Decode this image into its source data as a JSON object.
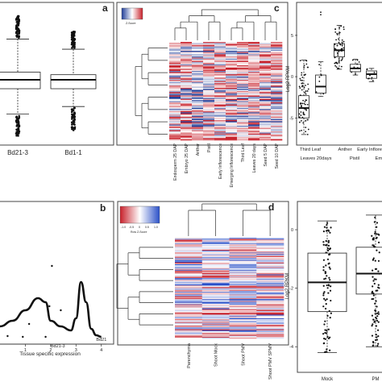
{
  "panels": {
    "a": {
      "label": "a",
      "chart_data": {
        "type": "boxplot",
        "categories": [
          "Bd21-3",
          "Bd1-1"
        ],
        "boxes": [
          {
            "name": "Bd21-3",
            "q1": 4.3,
            "median": 5.0,
            "q3": 5.6,
            "whisker_low": 2.3,
            "whisker_high": 8.2
          },
          {
            "name": "Bd1-1",
            "q1": 4.3,
            "median": 5.0,
            "q3": 5.4,
            "whisker_low": 2.9,
            "whisker_high": 7.4
          }
        ],
        "ylim": [
          0,
          10
        ]
      }
    },
    "b": {
      "label": "b",
      "xlabel": "Tissue specific expression",
      "chart_data": {
        "type": "line",
        "x": [
          0,
          0.5,
          1.0,
          1.5,
          1.8,
          2.0,
          2.4,
          2.8,
          3.0,
          3.2,
          3.4,
          3.6,
          3.8,
          4.0
        ],
        "y": [
          0.15,
          0.22,
          0.35,
          0.5,
          0.45,
          0.22,
          0.15,
          0.1,
          0.25,
          0.7,
          0.45,
          0.12,
          0.04,
          0.02
        ],
        "xticks": [
          "1",
          "2",
          "3",
          "4"
        ],
        "xlim": [
          0,
          4.2
        ],
        "ylim": [
          0,
          1.6
        ],
        "points": [
          {
            "x": 1.15,
            "y": 0.18
          },
          {
            "x": 1.95,
            "y": 0.4
          },
          {
            "x": 2.05,
            "y": 0.9
          },
          {
            "x": 2.4,
            "y": 0.35
          },
          {
            "x": 0.3,
            "y": 0.03
          },
          {
            "x": 0.9,
            "y": 0.02
          },
          {
            "x": 1.8,
            "y": 0.02
          }
        ],
        "annotations": [
          {
            "text": "Bd21-3",
            "x": 2.0,
            "y": -0.08
          },
          {
            "text": "Bd21",
            "x": 3.8,
            "y": 0.0
          }
        ]
      }
    },
    "c": {
      "label": "c",
      "legend_caption": "Z-Score",
      "columns": [
        "Endosperm 25 DAP",
        "Embryo 25 DAP",
        "Anther",
        "Pistil",
        "Early Inflorescence",
        "Emerging Inflorescence",
        "Third Leaf",
        "Leaves 20 days",
        "Seed 5 DAP",
        "Seed 10 DAP"
      ],
      "chart_data": {
        "type": "heatmap",
        "colors": [
          "#1f3d99",
          "#ffffff",
          "#c8202a"
        ],
        "rows": 88,
        "cols": 10
      }
    },
    "c_box": {
      "ylabel": "Log2 RPKM",
      "labels_row1": [
        "Third Leaf",
        "Anther",
        "Early Inflores"
      ],
      "labels_row2": [
        "Leaves 20days",
        "Pistil",
        "Emerg"
      ],
      "chart_data": {
        "type": "boxplot",
        "yticks": [
          "-5",
          "0",
          "5"
        ],
        "ylim": [
          -7.5,
          8.5
        ],
        "boxes": [
          {
            "name": "Third Leaf",
            "q1": -5.0,
            "median": -3.8,
            "q3": -2.3,
            "whisker_low": -7.0,
            "whisker_high": 2.0
          },
          {
            "name": "Leaves 20days",
            "q1": -2.0,
            "median": -1.2,
            "q3": 0.2,
            "whisker_low": -2.4,
            "whisker_high": 1.8
          },
          {
            "name": "Anther",
            "q1": 2.4,
            "median": 3.2,
            "q3": 4.0,
            "whisker_low": 0.9,
            "whisker_high": 6.2
          },
          {
            "name": "Pistil",
            "q1": 0.6,
            "median": 1.0,
            "q3": 1.5,
            "whisker_low": 0.2,
            "whisker_high": 2.1
          },
          {
            "name": "Early Inflores",
            "q1": -0.2,
            "median": 0.3,
            "q3": 0.7,
            "whisker_low": -0.6,
            "whisker_high": 1.0
          }
        ]
      }
    },
    "d": {
      "label": "d",
      "legend_ticks": [
        "-1.0",
        "-0.5",
        "0",
        "0.5",
        "1.0"
      ],
      "legend_caption": "Row Z-Score",
      "columns": [
        "Parenchyma",
        "Shoot Mock",
        "Shoot PMV",
        "Shoot PMV SPMV"
      ],
      "chart_data": {
        "type": "heatmap",
        "colors": [
          "#c8202a",
          "#ffffff",
          "#2a50c8"
        ],
        "rows": 110,
        "cols": 4
      }
    },
    "d_box": {
      "ylabel": "Log2 RPKM",
      "categories": [
        "Mock",
        "PM"
      ],
      "chart_data": {
        "type": "boxplot",
        "yticks": [
          "0",
          "-2",
          "-4"
        ],
        "ylim": [
          -4.6,
          0.8
        ],
        "boxes": [
          {
            "name": "Mock",
            "q1": -2.8,
            "median": -1.8,
            "q3": -0.8,
            "whisker_low": -4.2,
            "whisker_high": 0.3
          },
          {
            "name": "PM",
            "q1": -2.2,
            "median": -1.5,
            "q3": -0.6,
            "whisker_low": -4.0,
            "whisker_high": 0.5
          }
        ]
      }
    }
  }
}
